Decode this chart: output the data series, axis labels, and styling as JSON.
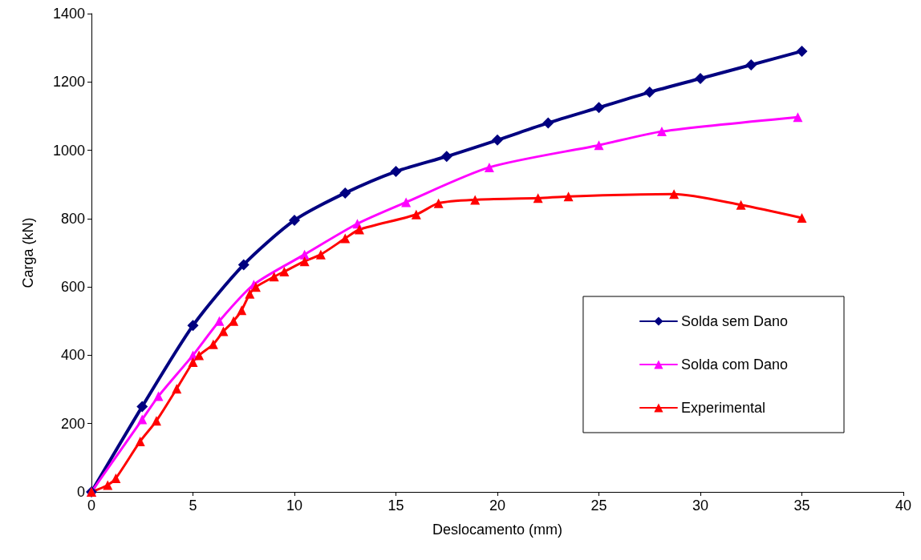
{
  "chart_data": {
    "type": "line",
    "xlabel": "Deslocamento (mm)",
    "ylabel": "Carga (kN)",
    "xlim": [
      0,
      40
    ],
    "xticks": [
      0,
      5,
      10,
      15,
      20,
      25,
      30,
      35,
      40
    ],
    "ylim": [
      0,
      1400
    ],
    "yticks": [
      0,
      200,
      400,
      600,
      800,
      1000,
      1200,
      1400
    ],
    "grid": false,
    "legend": "right",
    "line_style": "solid",
    "series": [
      {
        "name": "Solda sem Dano",
        "color": "#000080",
        "marker": "diamond",
        "x": [
          0,
          2.5,
          5,
          7.5,
          10,
          12.5,
          15,
          17.5,
          20,
          22.5,
          25,
          27.5,
          30,
          32.5,
          35
        ],
        "values": [
          0,
          250,
          487,
          665,
          795,
          875,
          938,
          982,
          1030,
          1080,
          1125,
          1170,
          1210,
          1250,
          1290
        ]
      },
      {
        "name": "Solda com Dano",
        "color": "#ff00ff",
        "marker": "triangle",
        "x": [
          0,
          2.5,
          3.3,
          5,
          6.3,
          8,
          10.5,
          13.1,
          15.5,
          19.6,
          25,
          28.1,
          34.8
        ],
        "values": [
          0,
          212,
          280,
          400,
          500,
          607,
          695,
          785,
          848,
          950,
          1015,
          1055,
          1097
        ]
      },
      {
        "name": "Experimental",
        "color": "#ff0000",
        "marker": "triangle",
        "x": [
          0,
          0.8,
          1.2,
          2.4,
          3.2,
          4.2,
          5,
          5.3,
          6,
          6.5,
          7,
          7.4,
          7.8,
          8.1,
          9,
          9.5,
          10.5,
          11.3,
          12.5,
          13.2,
          16,
          17.1,
          18.9,
          22,
          23.5,
          28.7,
          32,
          35
        ],
        "values": [
          0,
          20,
          40,
          148,
          208,
          302,
          380,
          400,
          432,
          470,
          500,
          532,
          580,
          600,
          630,
          645,
          675,
          695,
          742,
          768,
          812,
          845,
          855,
          860,
          865,
          872,
          840,
          802
        ]
      }
    ]
  }
}
